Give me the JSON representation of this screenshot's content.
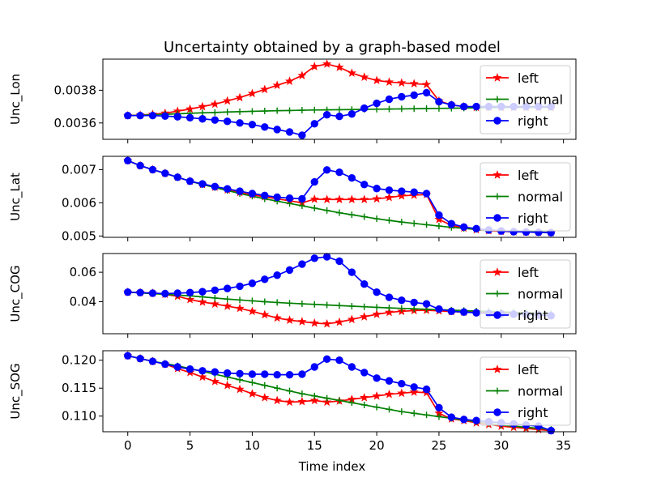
{
  "chart": {
    "title": "Uncertainty obtained by a graph-based model",
    "xlabel": "Time index"
  },
  "chart_data": [
    {
      "type": "line",
      "title": "Uncertainty obtained by a graph-based model",
      "ylabel": "Unc_Lon",
      "xlabel": "",
      "xlim": [
        -2,
        36
      ],
      "ylim": [
        0.0035,
        0.00399
      ],
      "yticks": [
        0.0036,
        0.0038
      ],
      "ytick_labels": [
        "0.0036",
        "0.0038"
      ],
      "legend": "right",
      "series": [
        {
          "name": "left",
          "color": "#ff0000",
          "marker": "star",
          "values": [
            0.003645,
            0.003648,
            0.003653,
            0.00366,
            0.003672,
            0.003685,
            0.0037,
            0.003715,
            0.003735,
            0.003755,
            0.00378,
            0.003805,
            0.00383,
            0.003855,
            0.00389,
            0.003945,
            0.00396,
            0.00394,
            0.003905,
            0.00388,
            0.00386,
            0.00385,
            0.003845,
            0.00384,
            0.003835,
            0.003735,
            0.00371,
            0.0037,
            0.003695,
            0.003695,
            0.003695,
            0.003695,
            0.003695,
            0.003695,
            0.003695
          ]
        },
        {
          "name": "normal",
          "color": "#008000",
          "marker": "plus",
          "values": [
            0.003645,
            0.003647,
            0.00365,
            0.003653,
            0.003656,
            0.003659,
            0.003662,
            0.003664,
            0.003667,
            0.003669,
            0.003671,
            0.003673,
            0.003675,
            0.003676,
            0.003678,
            0.003679,
            0.00368,
            0.003681,
            0.003682,
            0.003683,
            0.003684,
            0.003685,
            0.003686,
            0.003687,
            0.003688,
            0.003689,
            0.00369,
            0.003691,
            0.003692,
            0.003693,
            0.003694,
            0.003694,
            0.003695,
            0.003695,
            0.003695
          ]
        },
        {
          "name": "right",
          "color": "#0000ff",
          "marker": "circle",
          "values": [
            0.003645,
            0.003645,
            0.003645,
            0.003642,
            0.003638,
            0.003632,
            0.003625,
            0.003618,
            0.00361,
            0.0036,
            0.00359,
            0.003575,
            0.00356,
            0.003545,
            0.003525,
            0.003595,
            0.00365,
            0.00364,
            0.003655,
            0.00369,
            0.00372,
            0.003745,
            0.00376,
            0.00377,
            0.003785,
            0.00373,
            0.00371,
            0.0037,
            0.0037,
            0.0037,
            0.0037,
            0.0037,
            0.0037,
            0.0037,
            0.0037
          ]
        }
      ]
    },
    {
      "type": "line",
      "ylabel": "Unc_Lat",
      "xlabel": "",
      "xlim": [
        -2,
        36
      ],
      "ylim": [
        0.00496,
        0.0074
      ],
      "yticks": [
        0.005,
        0.006,
        0.007
      ],
      "ytick_labels": [
        "0.005",
        "0.006",
        "0.007"
      ],
      "legend": "right",
      "series": [
        {
          "name": "left",
          "color": "#ff0000",
          "marker": "star",
          "values": [
            0.00727,
            0.00712,
            0.007,
            0.00689,
            0.00677,
            0.00665,
            0.00655,
            0.00647,
            0.00639,
            0.00631,
            0.00624,
            0.00618,
            0.00612,
            0.00606,
            0.006,
            0.00611,
            0.0061,
            0.0061,
            0.0061,
            0.0061,
            0.00612,
            0.00616,
            0.00621,
            0.00623,
            0.00625,
            0.0055,
            0.00532,
            0.00524,
            0.00519,
            0.00516,
            0.00514,
            0.00513,
            0.00512,
            0.00511,
            0.0051
          ]
        },
        {
          "name": "normal",
          "color": "#008000",
          "marker": "plus",
          "values": [
            0.00727,
            0.00712,
            0.007,
            0.00689,
            0.00677,
            0.00665,
            0.00655,
            0.00646,
            0.00637,
            0.00628,
            0.0062,
            0.00612,
            0.00605,
            0.00598,
            0.00591,
            0.00584,
            0.00577,
            0.0057,
            0.00564,
            0.00558,
            0.00552,
            0.00547,
            0.00542,
            0.00538,
            0.00534,
            0.0053,
            0.00526,
            0.00523,
            0.0052,
            0.00518,
            0.00516,
            0.00514,
            0.00513,
            0.00512,
            0.00511
          ]
        },
        {
          "name": "right",
          "color": "#0000ff",
          "marker": "circle",
          "values": [
            0.00727,
            0.00712,
            0.007,
            0.00689,
            0.00677,
            0.00665,
            0.00657,
            0.00649,
            0.00642,
            0.00635,
            0.00628,
            0.00622,
            0.00617,
            0.00614,
            0.00612,
            0.00663,
            0.00699,
            0.00692,
            0.00675,
            0.00655,
            0.00643,
            0.00638,
            0.00635,
            0.00632,
            0.00628,
            0.00563,
            0.00537,
            0.00527,
            0.00522,
            0.00518,
            0.00515,
            0.00513,
            0.00512,
            0.00511,
            0.0051
          ]
        }
      ]
    },
    {
      "type": "line",
      "ylabel": "Unc_COG",
      "xlabel": "",
      "xlim": [
        -2,
        36
      ],
      "ylim": [
        0.0183,
        0.0727
      ],
      "yticks": [
        0.04,
        0.06
      ],
      "ytick_labels": [
        "0.04",
        "0.06"
      ],
      "legend": "right",
      "series": [
        {
          "name": "left",
          "color": "#ff0000",
          "marker": "star",
          "values": [
            0.0465,
            0.0462,
            0.0458,
            0.045,
            0.0437,
            0.0415,
            0.0398,
            0.0385,
            0.037,
            0.0355,
            0.0335,
            0.0312,
            0.029,
            0.0275,
            0.0265,
            0.0255,
            0.025,
            0.0262,
            0.028,
            0.0298,
            0.0315,
            0.0328,
            0.0335,
            0.034,
            0.0342,
            0.0338,
            0.0333,
            0.033,
            0.0328,
            0.0325,
            0.0322,
            0.0318,
            0.0315,
            0.0312,
            0.0305
          ]
        },
        {
          "name": "normal",
          "color": "#008000",
          "marker": "plus",
          "values": [
            0.0465,
            0.046,
            0.0455,
            0.045,
            0.0445,
            0.044,
            0.0433,
            0.0425,
            0.0418,
            0.0412,
            0.0406,
            0.04,
            0.0395,
            0.039,
            0.0386,
            0.0382,
            0.0378,
            0.0374,
            0.037,
            0.0366,
            0.0362,
            0.0358,
            0.0355,
            0.0352,
            0.0349,
            0.0346,
            0.0343,
            0.034,
            0.0337,
            0.0334,
            0.0331,
            0.0328,
            0.0325,
            0.0322,
            0.0318
          ]
        },
        {
          "name": "right",
          "color": "#0000ff",
          "marker": "circle",
          "values": [
            0.0465,
            0.0462,
            0.0458,
            0.0455,
            0.0458,
            0.0462,
            0.0468,
            0.0478,
            0.049,
            0.0505,
            0.0525,
            0.0552,
            0.058,
            0.0615,
            0.0655,
            0.0695,
            0.0705,
            0.0675,
            0.06,
            0.052,
            0.0465,
            0.043,
            0.041,
            0.0395,
            0.0385,
            0.035,
            0.0335,
            0.033,
            0.0325,
            0.032,
            0.0318,
            0.0315,
            0.0312,
            0.031,
            0.0305
          ]
        }
      ]
    },
    {
      "type": "line",
      "ylabel": "Unc_SOG",
      "xlabel": "Time index",
      "xlim": [
        -2,
        36
      ],
      "ylim": [
        0.1072,
        0.1217
      ],
      "yticks": [
        0.11,
        0.115,
        0.12
      ],
      "ytick_labels": [
        "0.110",
        "0.115",
        "0.120"
      ],
      "xticks": [
        0,
        5,
        10,
        15,
        20,
        25,
        30,
        35
      ],
      "legend": "right",
      "series": [
        {
          "name": "left",
          "color": "#ff0000",
          "marker": "star",
          "values": [
            0.1208,
            0.1203,
            0.1198,
            0.1193,
            0.1185,
            0.1178,
            0.117,
            0.1162,
            0.1155,
            0.1148,
            0.114,
            0.1133,
            0.1128,
            0.1125,
            0.1126,
            0.1128,
            0.1125,
            0.1127,
            0.113,
            0.1133,
            0.1136,
            0.1139,
            0.1141,
            0.1143,
            0.1142,
            0.1105,
            0.1095,
            0.1092,
            0.1088,
            0.1085,
            0.1082,
            0.108,
            0.1078,
            0.1076,
            0.1074
          ]
        },
        {
          "name": "normal",
          "color": "#008000",
          "marker": "plus",
          "values": [
            0.1208,
            0.1203,
            0.1198,
            0.1194,
            0.119,
            0.1185,
            0.118,
            0.1175,
            0.117,
            0.1165,
            0.116,
            0.1155,
            0.115,
            0.1145,
            0.114,
            0.1136,
            0.1132,
            0.1128,
            0.1124,
            0.112,
            0.1116,
            0.1112,
            0.1108,
            0.1105,
            0.1102,
            0.1099,
            0.1096,
            0.1093,
            0.109,
            0.1087,
            0.1084,
            0.1082,
            0.108,
            0.1078,
            0.1076
          ]
        },
        {
          "name": "right",
          "color": "#0000ff",
          "marker": "circle",
          "values": [
            0.1208,
            0.1203,
            0.1198,
            0.1193,
            0.1188,
            0.1184,
            0.1181,
            0.1179,
            0.1177,
            0.1176,
            0.1175,
            0.1175,
            0.1174,
            0.1174,
            0.1175,
            0.1188,
            0.1202,
            0.12,
            0.1188,
            0.1178,
            0.1168,
            0.1163,
            0.1158,
            0.1152,
            0.1148,
            0.1115,
            0.1098,
            0.1094,
            0.1092,
            0.109,
            0.1088,
            0.1086,
            0.1084,
            0.1082,
            0.1074
          ]
        }
      ]
    }
  ]
}
